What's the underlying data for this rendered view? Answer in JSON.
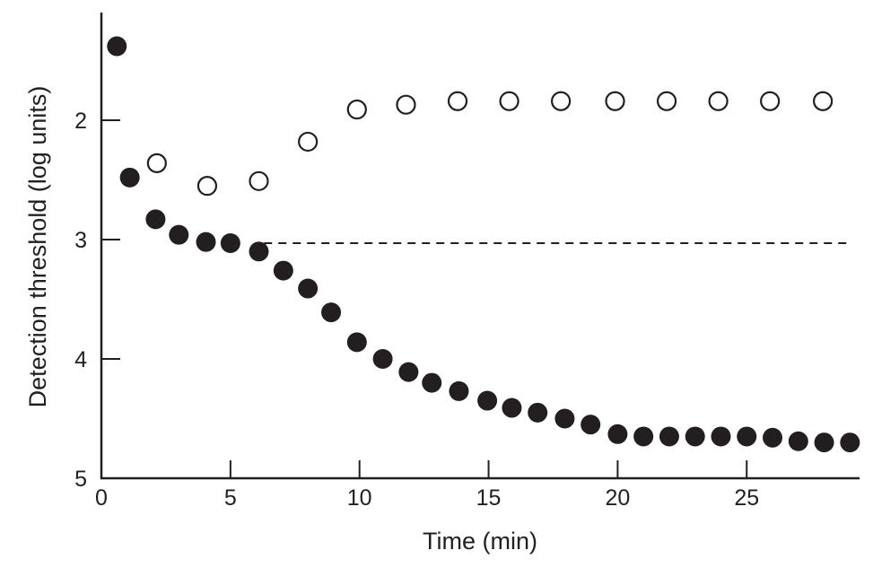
{
  "chart_data": {
    "type": "scatter",
    "title": "",
    "xlabel": "Time (min)",
    "ylabel": "Detection threshold (log units)",
    "xlim": [
      0,
      29.3
    ],
    "ylim": [
      5,
      1.1
    ],
    "y_inverted": true,
    "grid": false,
    "xticks": [
      0,
      5,
      10,
      15,
      20,
      25
    ],
    "xtick_labels": [
      "0",
      "5",
      "10",
      "15",
      "20",
      "25"
    ],
    "yticks": [
      2,
      3,
      4,
      5
    ],
    "ytick_labels": [
      "2",
      "3",
      "4",
      "5"
    ],
    "colors": {
      "ink": "#231f20"
    },
    "series": [
      {
        "name": "filled",
        "marker": "filled-circle",
        "x": [
          0.6,
          1.1,
          2.1,
          3.0,
          4.05,
          5.0,
          6.1,
          7.05,
          8.0,
          8.9,
          9.9,
          10.9,
          11.9,
          12.8,
          13.85,
          14.95,
          15.9,
          16.9,
          17.95,
          18.95,
          20.0,
          21.0,
          22.0,
          23.0,
          24.0,
          25.0,
          26.0,
          27.0,
          28.0,
          29.0
        ],
        "y": [
          1.38,
          2.48,
          2.83,
          2.96,
          3.02,
          3.03,
          3.1,
          3.26,
          3.41,
          3.61,
          3.86,
          4.0,
          4.11,
          4.2,
          4.27,
          4.35,
          4.41,
          4.45,
          4.5,
          4.55,
          4.63,
          4.65,
          4.65,
          4.65,
          4.65,
          4.65,
          4.66,
          4.69,
          4.7,
          4.7
        ]
      },
      {
        "name": "open",
        "marker": "open-circle",
        "x": [
          2.15,
          4.1,
          6.1,
          8.0,
          9.9,
          11.8,
          13.8,
          15.8,
          17.8,
          19.9,
          21.9,
          23.9,
          25.9,
          27.95
        ],
        "y": [
          2.36,
          2.55,
          2.51,
          2.18,
          1.91,
          1.87,
          1.84,
          1.84,
          1.84,
          1.84,
          1.84,
          1.84,
          1.84,
          1.84
        ]
      }
    ],
    "reference_line": {
      "style": "dashed",
      "y": 3.03,
      "x_start": 6.3,
      "x_end": 29.1
    }
  }
}
